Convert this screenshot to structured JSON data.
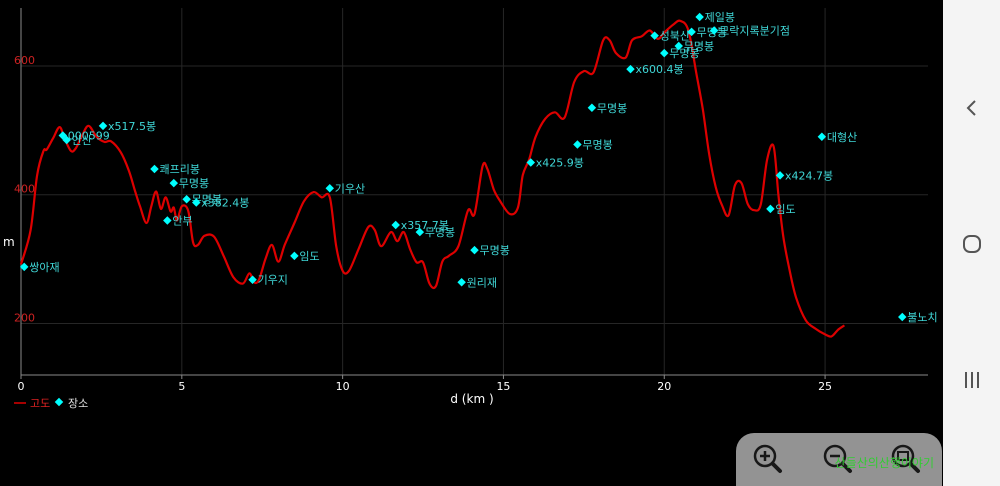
{
  "chart_data": {
    "type": "line",
    "xlabel": "d (km )",
    "ylabel": "m",
    "xlim": [
      0,
      28.2
    ],
    "ylim": [
      120,
      690
    ],
    "x_ticks": [
      0,
      5,
      10,
      15,
      20,
      25
    ],
    "y_ticks": [
      200,
      400,
      600
    ],
    "grid": true,
    "legend": {
      "placement": "bottom-left",
      "line_label": "고도",
      "marker_label": "장소"
    },
    "colors": {
      "line": "#dd0000",
      "marker": "#00ffff",
      "place_text": "#40d8d8",
      "grid": "#262626",
      "axis": "#8a8a8a",
      "y_tick": "#cc2222"
    },
    "series": [
      {
        "name": "고도",
        "x": [
          0,
          0.3,
          0.5,
          0.7,
          0.8,
          1.0,
          1.2,
          1.35,
          1.55,
          1.7,
          1.9,
          2.1,
          2.35,
          2.6,
          2.8,
          3.1,
          3.35,
          3.55,
          3.7,
          3.9,
          4.05,
          4.2,
          4.35,
          4.5,
          4.65,
          4.75,
          4.85,
          5.0,
          5.2,
          5.35,
          5.5,
          5.7,
          6.0,
          6.3,
          6.6,
          6.9,
          7.1,
          7.25,
          7.4,
          7.6,
          7.8,
          8.0,
          8.2,
          8.5,
          8.8,
          9.1,
          9.35,
          9.6,
          9.8,
          10.0,
          10.2,
          10.5,
          10.8,
          11.0,
          11.2,
          11.5,
          11.7,
          11.9,
          12.1,
          12.3,
          12.5,
          12.7,
          12.9,
          13.1,
          13.3,
          13.6,
          13.9,
          14.1,
          14.35,
          14.5,
          14.7,
          14.9,
          15.2,
          15.45,
          15.6,
          15.8,
          16.0,
          16.3,
          16.6,
          16.9,
          17.2,
          17.5,
          17.8,
          18.1,
          18.3,
          18.5,
          18.8,
          19.0,
          19.3,
          19.55,
          19.8,
          20.0,
          20.3,
          20.5,
          20.75,
          21.0,
          21.2,
          21.4,
          21.6,
          21.8,
          22.0,
          22.2,
          22.4,
          22.6,
          22.8,
          23.0,
          23.2,
          23.4,
          23.55,
          23.7,
          23.9,
          24.1,
          24.4,
          24.7,
          25.0,
          25.2,
          25.4,
          25.6
        ],
        "values": [
          292,
          345,
          430,
          468,
          470,
          488,
          505,
          488,
          468,
          472,
          492,
          507,
          490,
          482,
          483,
          466,
          438,
          405,
          382,
          356,
          382,
          405,
          378,
          396,
          374,
          380,
          360,
          382,
          375,
          326,
          322,
          336,
          335,
          305,
          272,
          262,
          278,
          264,
          268,
          300,
          322,
          296,
          322,
          356,
          390,
          404,
          396,
          396,
          320,
          282,
          282,
          316,
          350,
          345,
          320,
          342,
          328,
          342,
          315,
          295,
          295,
          262,
          258,
          296,
          305,
          320,
          376,
          370,
          444,
          440,
          408,
          390,
          370,
          380,
          430,
          455,
          490,
          518,
          528,
          520,
          575,
          592,
          590,
          640,
          640,
          620,
          613,
          640,
          646,
          655,
          642,
          652,
          665,
          670,
          655,
          588,
          532,
          462,
          412,
          383,
          368,
          415,
          418,
          385,
          376,
          385,
          455,
          475,
          400,
          335,
          282,
          240,
          205,
          192,
          183,
          180,
          190,
          197
        ]
      }
    ],
    "places": [
      {
        "name": "쌍아재",
        "x": 0.1,
        "elev": 288
      },
      {
        "name": "000599",
        "x": 1.3,
        "elev": 492
      },
      {
        "name": "안산",
        "x": 1.42,
        "elev": 485
      },
      {
        "name": "x517.5봉",
        "x": 2.55,
        "elev": 507
      },
      {
        "name": "쾌프리봉",
        "x": 4.15,
        "elev": 440
      },
      {
        "name": "안부",
        "x": 4.55,
        "elev": 360
      },
      {
        "name": "무명봉",
        "x": 4.75,
        "elev": 418
      },
      {
        "name": "무명봉",
        "x": 5.15,
        "elev": 393
      },
      {
        "name": "x382.4봉",
        "x": 5.45,
        "elev": 388
      },
      {
        "name": "기우지",
        "x": 7.2,
        "elev": 268
      },
      {
        "name": "임도",
        "x": 8.5,
        "elev": 305
      },
      {
        "name": "기우산",
        "x": 9.6,
        "elev": 410
      },
      {
        "name": "x357.7봉",
        "x": 11.65,
        "elev": 353
      },
      {
        "name": "무명봉",
        "x": 12.4,
        "elev": 342
      },
      {
        "name": "원리재",
        "x": 13.7,
        "elev": 264
      },
      {
        "name": "무명봉",
        "x": 14.1,
        "elev": 314
      },
      {
        "name": "x425.9봉",
        "x": 15.85,
        "elev": 450
      },
      {
        "name": "무명봉",
        "x": 17.3,
        "elev": 478
      },
      {
        "name": "무명봉",
        "x": 17.75,
        "elev": 535
      },
      {
        "name": "x600.4봉",
        "x": 18.95,
        "elev": 595
      },
      {
        "name": "성북산",
        "x": 19.7,
        "elev": 647
      },
      {
        "name": "무명봉",
        "x": 20.0,
        "elev": 620
      },
      {
        "name": "무명봉",
        "x": 20.45,
        "elev": 631
      },
      {
        "name": "무명봉",
        "x": 20.85,
        "elev": 653
      },
      {
        "name": "제일봉",
        "x": 21.1,
        "elev": 676
      },
      {
        "name": "모락지록분기점",
        "x": 21.55,
        "elev": 655
      },
      {
        "name": "임도",
        "x": 23.3,
        "elev": 378
      },
      {
        "name": "x424.7봉",
        "x": 23.6,
        "elev": 430
      },
      {
        "name": "대형산",
        "x": 24.9,
        "elev": 490
      },
      {
        "name": "불노치",
        "x": 27.4,
        "elev": 210
      }
    ]
  },
  "navbar": {
    "back_icon": "chevron-left-icon",
    "home_icon": "circle-home-icon",
    "recents_icon": "three-bars-icon"
  },
  "zoom": {
    "zoom_in_icon": "zoom-in-icon",
    "zoom_out_icon": "zoom-out-icon",
    "reset_icon": "zoom-reset-icon"
  },
  "credit_text": "산들산의산행이야기"
}
